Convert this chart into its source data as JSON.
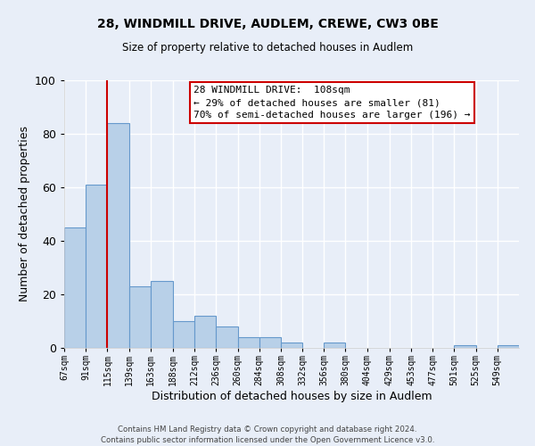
{
  "title": "28, WINDMILL DRIVE, AUDLEM, CREWE, CW3 0BE",
  "subtitle": "Size of property relative to detached houses in Audlem",
  "xlabel": "Distribution of detached houses by size in Audlem",
  "ylabel": "Number of detached properties",
  "bar_color": "#b8d0e8",
  "bar_edge_color": "#6699cc",
  "background_color": "#e8eef8",
  "plot_bg_color": "#e8eef8",
  "grid_color": "#ffffff",
  "bin_labels": [
    "67sqm",
    "91sqm",
    "115sqm",
    "139sqm",
    "163sqm",
    "188sqm",
    "212sqm",
    "236sqm",
    "260sqm",
    "284sqm",
    "308sqm",
    "332sqm",
    "356sqm",
    "380sqm",
    "404sqm",
    "429sqm",
    "453sqm",
    "477sqm",
    "501sqm",
    "525sqm",
    "549sqm"
  ],
  "bin_edges": [
    67,
    91,
    115,
    139,
    163,
    188,
    212,
    236,
    260,
    284,
    308,
    332,
    356,
    380,
    404,
    429,
    453,
    477,
    501,
    525,
    549,
    573
  ],
  "counts": [
    45,
    61,
    84,
    23,
    25,
    10,
    12,
    8,
    4,
    4,
    2,
    0,
    2,
    0,
    0,
    0,
    0,
    0,
    1,
    0,
    1
  ],
  "vline_x": 115,
  "ylim": [
    0,
    100
  ],
  "yticks": [
    0,
    20,
    40,
    60,
    80,
    100
  ],
  "annotation_text_line1": "28 WINDMILL DRIVE:  108sqm",
  "annotation_text_line2": "← 29% of detached houses are smaller (81)",
  "annotation_text_line3": "70% of semi-detached houses are larger (196) →",
  "annotation_box_color": "#ffffff",
  "annotation_box_edge_color": "#cc0000",
  "vline_color": "#cc0000",
  "footer_line1": "Contains HM Land Registry data © Crown copyright and database right 2024.",
  "footer_line2": "Contains public sector information licensed under the Open Government Licence v3.0."
}
